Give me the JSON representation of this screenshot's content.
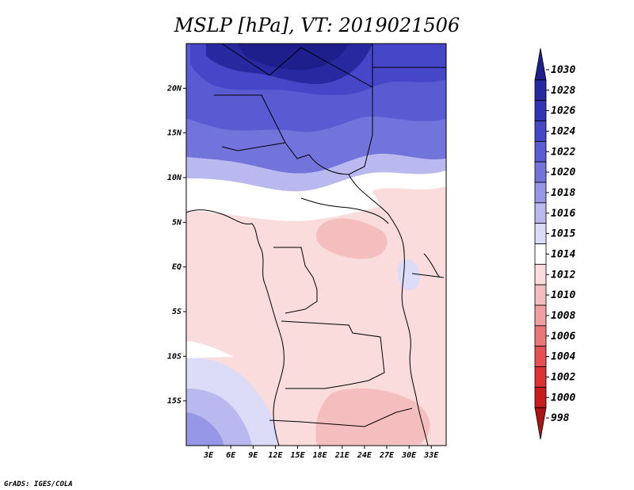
{
  "title": "MSLP [hPa], VT: 2019021506",
  "credit": "GrADS: IGES/COLA",
  "map": {
    "lon_range": [
      0,
      35
    ],
    "lat_range": [
      -20,
      25
    ],
    "x_ticks": [
      "3E",
      "6E",
      "9E",
      "12E",
      "15E",
      "18E",
      "21E",
      "24E",
      "27E",
      "30E",
      "33E"
    ],
    "y_ticks": [
      "20N",
      "15N",
      "10N",
      "5N",
      "EQ",
      "5S",
      "10S",
      "15S"
    ]
  },
  "colorbar": {
    "labels": [
      "1030",
      "1028",
      "1026",
      "1024",
      "1022",
      "1020",
      "1018",
      "1016",
      "1015",
      "1014",
      "1012",
      "1010",
      "1008",
      "1006",
      "1004",
      "1002",
      "1000",
      "998"
    ],
    "colors": [
      "#1e1e8c",
      "#2828a0",
      "#3232b4",
      "#4646c8",
      "#5a5ad2",
      "#7373dc",
      "#9696e6",
      "#b9b9f0",
      "#dcdcf8",
      "#ffffff",
      "#fadcdc",
      "#f5bebe",
      "#f0a0a0",
      "#eb7878",
      "#e65050",
      "#dc3232",
      "#c81e1e",
      "#aa1414"
    ]
  }
}
